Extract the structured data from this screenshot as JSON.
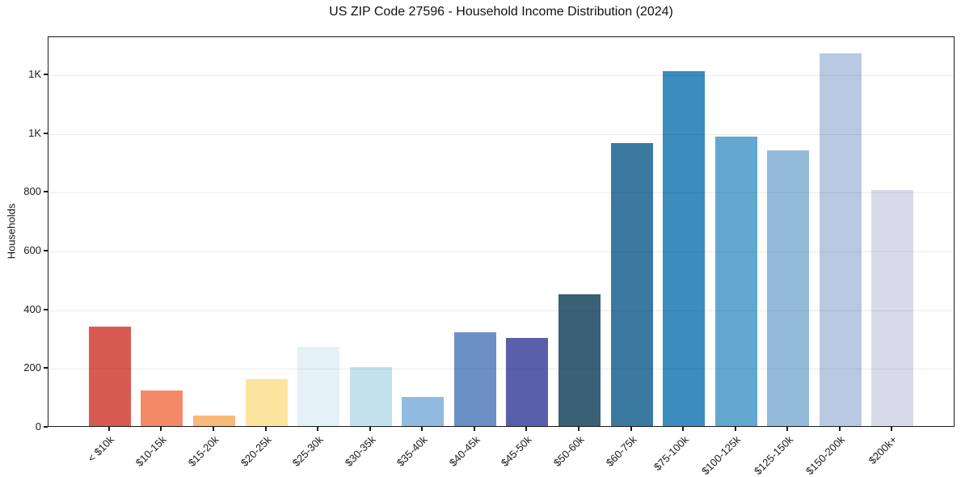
{
  "title": "US ZIP Code 27596 - Household Income Distribution (2024)",
  "chart_data": {
    "type": "bar",
    "title": "US ZIP Code 27596 - Household Income Distribution (2024)",
    "xlabel": "",
    "ylabel": "Households",
    "categories": [
      "< $10k",
      "$10-15k",
      "$15-20k",
      "$20-25k",
      "$25-30k",
      "$30-35k",
      "$35-40k",
      "$40-45k",
      "$45-50k",
      "$50-60k",
      "$60-75k",
      "$75-100k",
      "$100-125k",
      "$125-150k",
      "$150-200k",
      "$200k+"
    ],
    "values": [
      340,
      120,
      35,
      160,
      270,
      200,
      100,
      320,
      300,
      450,
      965,
      1210,
      985,
      940,
      1270,
      805
    ],
    "bar_colors": [
      "#d85b52",
      "#f48a68",
      "#f9ba79",
      "#fbe49e",
      "#e4f1f7",
      "#c3e2ee",
      "#90badf",
      "#6b90c6",
      "#5a5fa9",
      "#3a6175",
      "#3b79a1",
      "#3d8cbe",
      "#63a8cf",
      "#94bada",
      "#bac9e2",
      "#d8dae8"
    ],
    "yticks": [
      {
        "value": 0,
        "label": "0"
      },
      {
        "value": 200,
        "label": "200"
      },
      {
        "value": 400,
        "label": "400"
      },
      {
        "value": 600,
        "label": "600"
      },
      {
        "value": 800,
        "label": "800"
      },
      {
        "value": 1000,
        "label": "1K"
      },
      {
        "value": 1200,
        "label": "1K"
      }
    ],
    "ylim": [
      0,
      1330
    ],
    "grid": true,
    "legend": "none",
    "background_color": "#ffffff",
    "spine_color": "#1a1a1a",
    "gridline_color": "#ebebeb"
  }
}
